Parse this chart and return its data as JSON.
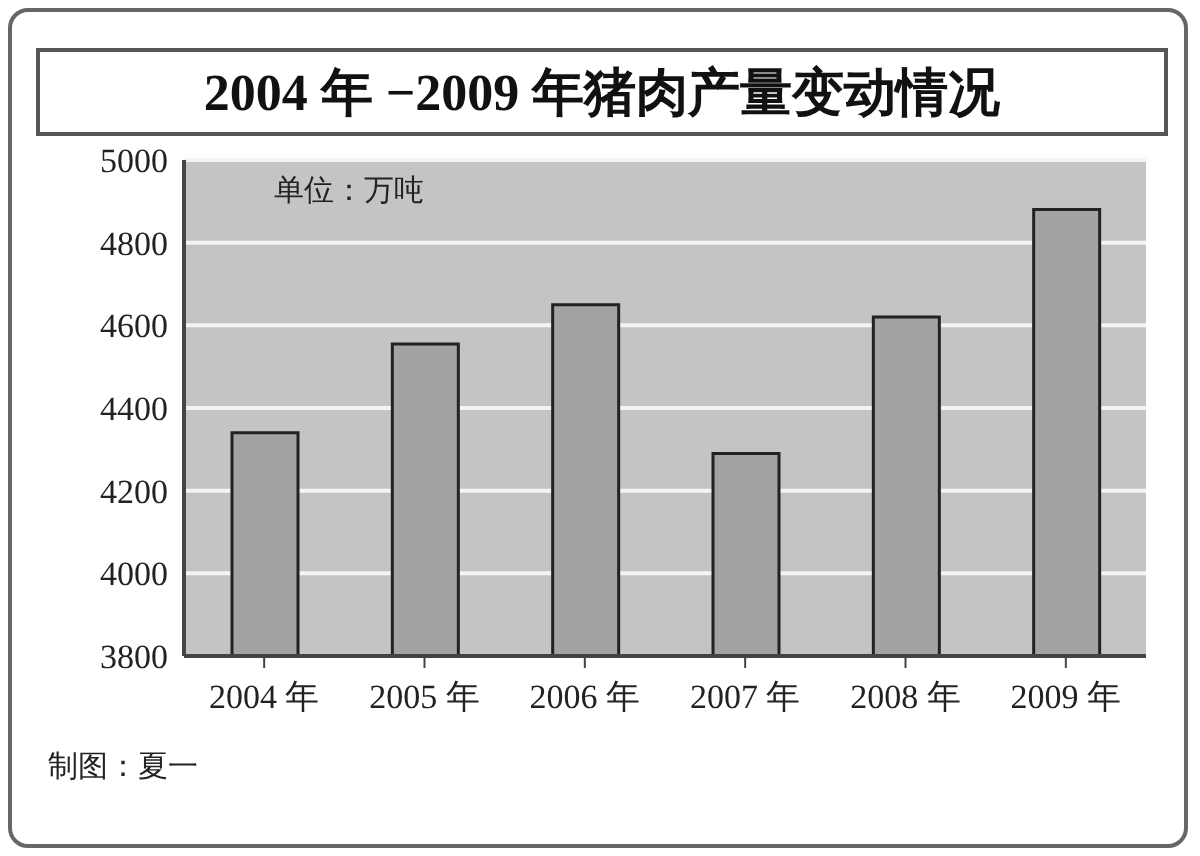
{
  "chart_data": {
    "type": "bar",
    "title": "2004 年 −2009 年猪肉产量变动情况",
    "categories": [
      "2004 年",
      "2005 年",
      "2006 年",
      "2007 年",
      "2008 年",
      "2009 年"
    ],
    "values": [
      4340,
      4555,
      4650,
      4290,
      4620,
      4880
    ],
    "color": "#a3a3a3",
    "ylim": [
      3800,
      5000
    ],
    "yticks": [
      3800,
      4000,
      4200,
      4400,
      4600,
      4800,
      5000
    ],
    "grid": "y",
    "annotations": [
      "单位：万吨",
      "制图：夏一"
    ]
  }
}
